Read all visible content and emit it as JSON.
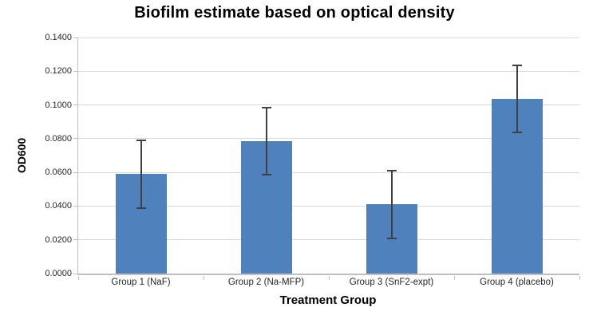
{
  "chart_data": {
    "type": "bar",
    "title": "Biofilm estimate based on optical density",
    "xlabel": "Treatment Group",
    "ylabel": "OD600",
    "categories": [
      "Group 1 (NaF)",
      "Group 2 (Na-MFP)",
      "Group 3 (SnF2-expt)",
      "Group 4 (placebo)"
    ],
    "values": [
      0.059,
      0.0785,
      0.041,
      0.1035
    ],
    "error_bars": [
      0.02,
      0.02,
      0.02,
      0.02
    ],
    "ylim": [
      0,
      0.14
    ],
    "ytick_step": 0.02,
    "ytick_decimals": 4,
    "grid": true,
    "legend_position": "none",
    "colors": {
      "bar_fill": "#4F81BD",
      "error_bar": "#404040",
      "gridline": "#D9D9D9",
      "axis_line": "#BFBFBF",
      "text": "#262626",
      "background": "#FFFFFF"
    }
  }
}
